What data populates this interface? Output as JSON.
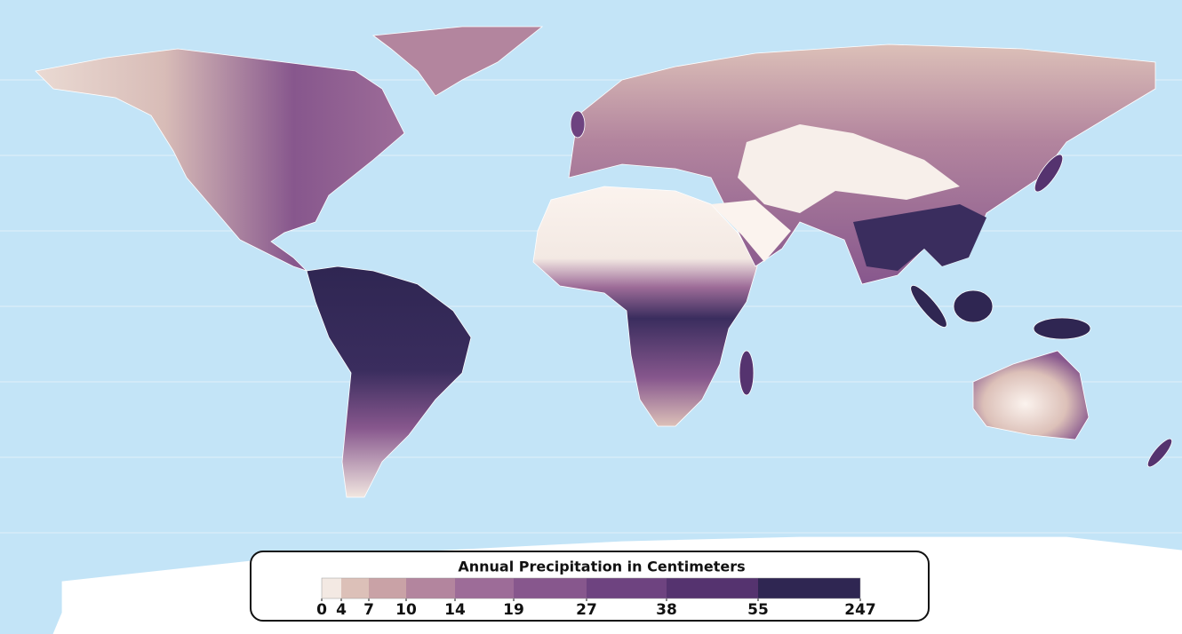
{
  "legend": {
    "title": "Annual Precipitation in Centimeters",
    "ticks": [
      0,
      4,
      7,
      10,
      14,
      19,
      27,
      38,
      55,
      247
    ],
    "colors": [
      "#f3e9e3",
      "#dcc0b8",
      "#c9a2a6",
      "#b3859e",
      "#9d6c98",
      "#87578d",
      "#6e4380",
      "#55336f",
      "#2f2652"
    ]
  }
}
